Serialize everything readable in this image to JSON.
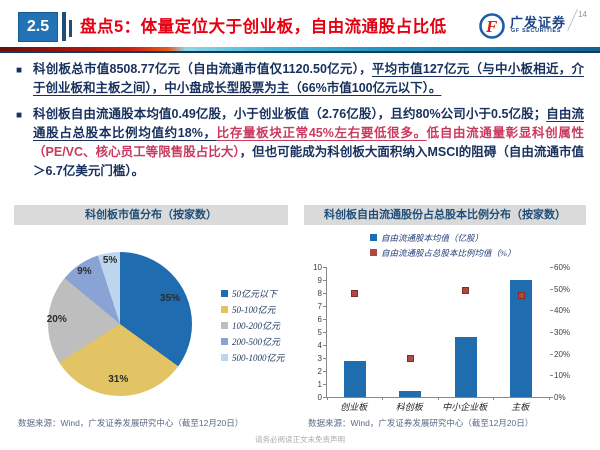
{
  "header": {
    "section_number": "2.5",
    "title": "盘点5：体量定位大于创业板，自由流通股占比低",
    "brand_cn": "广发证券",
    "brand_en": "GF SECURITIES",
    "page_number": "14"
  },
  "bullets": [
    {
      "plain1": "科创板总市值8508.77亿元（自由流通市值仅1120.50亿元），",
      "underline1": "平均市值127亿元（与中小板相近，介于创业板和主板之间），中小盘成长型股票为主（66%市值100亿元以下）。"
    },
    {
      "plain1": "科创板自由流通股本均值0.49亿股，小于创业板值（2.76亿股），且约80%公司小于0.5亿股；",
      "underline_navy": "自由流通股占总股本比例均值约18%，",
      "underline_red": "比存量板块正常45%左右要低很多。",
      "red": "低自由流通量彰显科创属性（PE/VC、核心员工等限售股占比大）",
      "plain2": "，但也可能成为科创板大面积纳入MSCI的阻碍（自由流通市值＞6.7亿美元门槛）。"
    }
  ],
  "chart_data": [
    {
      "type": "pie",
      "title": "科创板市值分布（按家数）",
      "legend_position": "right",
      "slices": [
        {
          "label": "50亿元以下",
          "value": 35,
          "color": "#1F6CB0"
        },
        {
          "label": "50-100亿元",
          "value": 31,
          "color": "#E2C465"
        },
        {
          "label": "100-200亿元",
          "value": 20,
          "color": "#BEBEBE"
        },
        {
          "label": "200-500亿元",
          "value": 9,
          "color": "#89A4D4"
        },
        {
          "label": "500-1000亿元",
          "value": 5,
          "color": "#BDD6EE"
        }
      ],
      "source": "数据来源：Wind，广发证券发展研究中心（截至12月20日）"
    },
    {
      "type": "bar",
      "title": "科创板自由流通股份占总股本比例分布（按家数）",
      "categories": [
        "创业板",
        "科创板",
        "中小企业板",
        "主板"
      ],
      "series": [
        {
          "name": "自由流通股本均值（亿股）",
          "type": "bar",
          "axis": "left",
          "color": "#1F6DAE",
          "values": [
            2.76,
            0.49,
            4.6,
            9.0
          ]
        },
        {
          "name": "自由流通股占总股本比例均值（%）",
          "type": "scatter",
          "axis": "right",
          "color": "#AE4A44",
          "values": [
            48,
            18,
            49,
            47
          ]
        }
      ],
      "left_axis": {
        "min": 0,
        "max": 10,
        "step": 1,
        "suffix": ""
      },
      "right_axis": {
        "min": 0,
        "max": 60,
        "step": 10,
        "suffix": "%"
      },
      "grid": false,
      "source": "数据来源：Wind，广发证券发展研究中心（截至12月20日）"
    }
  ],
  "footer": "请务必阅读正文末免责声明"
}
